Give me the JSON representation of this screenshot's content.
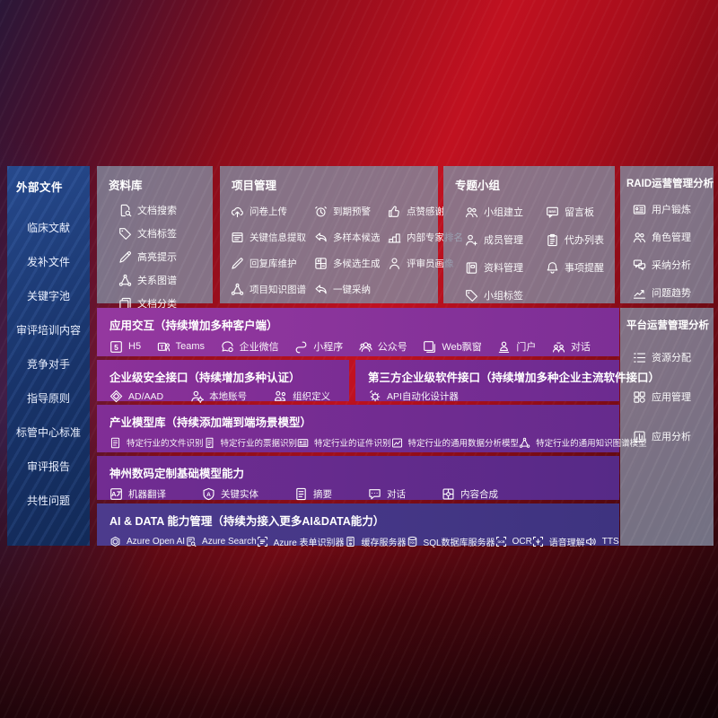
{
  "colors": {
    "background_red": "#c11120",
    "sidebar_blue": "#1b3a70",
    "panel_gray": "rgba(129,137,158,0.82)",
    "band_purple": "#8c3199",
    "band_indigo": "#453a86",
    "text": "#ffffff"
  },
  "sidebar": {
    "title": "外部文件",
    "items": [
      "临床文献",
      "发补文件",
      "关键字池",
      "审评培训内容",
      "竞争对手",
      "指导原则",
      "标管中心标准",
      "审评报告",
      "共性问题"
    ]
  },
  "panels": [
    {
      "title": "资料库",
      "items": [
        {
          "label": "文档搜索",
          "icon": "doc-search-icon"
        },
        {
          "label": "文档标签",
          "icon": "tag-icon"
        },
        {
          "label": "高亮提示",
          "icon": "highlighter-icon"
        },
        {
          "label": "关系图谱",
          "icon": "knowledge-graph-icon"
        },
        {
          "label": "文档分类",
          "icon": "documents-icon"
        }
      ]
    },
    {
      "title": "项目管理",
      "items": [
        {
          "label": "问卷上传",
          "icon": "cloud-upload-icon"
        },
        {
          "label": "到期预警",
          "icon": "alarm-icon"
        },
        {
          "label": "点赞感谢",
          "icon": "thumbs-up-icon"
        },
        {
          "label": "关键信息提取",
          "icon": "doc-extract-icon"
        },
        {
          "label": "多样本候选",
          "icon": "reply-arrow-icon"
        },
        {
          "label": "内部专家排名",
          "icon": "ranking-icon"
        },
        {
          "label": "回复库维护",
          "icon": "pen-icon"
        },
        {
          "label": "多候选生成",
          "icon": "multi-generate-icon"
        },
        {
          "label": "评审员画像",
          "icon": "person-icon"
        },
        {
          "label": "项目知识图谱",
          "icon": "knowledge-graph-icon"
        },
        {
          "label": "一键采纳",
          "icon": "adopt-arrow-icon"
        }
      ]
    },
    {
      "title": "专题小组",
      "items": [
        {
          "label": "小组建立",
          "icon": "people-icon"
        },
        {
          "label": "留言板",
          "icon": "bbs-icon"
        },
        {
          "label": "成员管理",
          "icon": "person-add-icon"
        },
        {
          "label": "代办列表",
          "icon": "clipboard-icon"
        },
        {
          "label": "资料管理",
          "icon": "album-icon"
        },
        {
          "label": "事项提醒",
          "icon": "bell-icon"
        },
        {
          "label": "小组标签",
          "icon": "tag-icon"
        }
      ]
    },
    {
      "title": "RAID运营管理分析",
      "items": [
        {
          "label": "用户锻炼",
          "icon": "id-card-icon"
        },
        {
          "label": "角色管理",
          "icon": "people-icon"
        },
        {
          "label": "采纳分析",
          "icon": "qa-chat-icon"
        },
        {
          "label": "问题趋势",
          "icon": "trend-chart-icon"
        }
      ]
    },
    {
      "title": "平台运营管理分析",
      "items": [
        {
          "label": "资源分配",
          "icon": "list-icon"
        },
        {
          "label": "应用管理",
          "icon": "apps-grid-icon"
        },
        {
          "label": "应用分析",
          "icon": "chart-doc-icon"
        }
      ]
    }
  ],
  "bands": [
    {
      "title": "应用交互（持续增加多种客户端）",
      "items": [
        {
          "label": "H5",
          "icon": "h5-icon"
        },
        {
          "label": "Teams",
          "icon": "teams-icon"
        },
        {
          "label": "企业微信",
          "icon": "wechat-work-icon"
        },
        {
          "label": "小程序",
          "icon": "miniprogram-icon"
        },
        {
          "label": "公众号",
          "icon": "official-account-icon"
        },
        {
          "label": "Web飘窗",
          "icon": "web-window-icon"
        },
        {
          "label": "门户",
          "icon": "portal-icon"
        },
        {
          "label": "对话",
          "icon": "dialog-people-icon"
        }
      ]
    },
    {
      "title": "企业级安全接口（持续增加多种认证）",
      "items": [
        {
          "label": "AD/AAD",
          "icon": "ad-shield-icon"
        },
        {
          "label": "本地账号",
          "icon": "local-account-icon"
        },
        {
          "label": "组织定义",
          "icon": "org-icon"
        }
      ]
    },
    {
      "title": "第三方企业级软件接口（持续增加多种企业主流软件接口）",
      "items": [
        {
          "label": "API自动化设计器",
          "icon": "api-gear-icon"
        }
      ]
    },
    {
      "title": "产业模型库（持续添加端到端场景模型）",
      "items": [
        {
          "label": "特定行业的文件识别",
          "icon": "doc-icon"
        },
        {
          "label": "特定行业的票据识别",
          "icon": "receipt-icon"
        },
        {
          "label": "特定行业的证件识别",
          "icon": "id-card-icon"
        },
        {
          "label": "特定行业的通用数据分析模型",
          "icon": "image-chart-icon"
        },
        {
          "label": "特定行业的通用知识图谱模型",
          "icon": "knowledge-graph-icon"
        }
      ]
    },
    {
      "title": "神州数码定制基础模型能力",
      "items": [
        {
          "label": "机器翻译",
          "icon": "translate-icon"
        },
        {
          "label": "关键实体",
          "icon": "shield-a-icon"
        },
        {
          "label": "摘要",
          "icon": "summary-doc-icon"
        },
        {
          "label": "对话",
          "icon": "chat-icon"
        },
        {
          "label": "内容合成",
          "icon": "puzzle-icon"
        }
      ]
    },
    {
      "title": "AI & DATA 能力管理（持续为接入更多AI&DATA能力）",
      "items": [
        {
          "label": "Azure Open AI",
          "icon": "openai-icon"
        },
        {
          "label": "Azure Search",
          "icon": "azure-search-icon"
        },
        {
          "label": "Azure 表单识别器",
          "icon": "form-recognizer-icon"
        },
        {
          "label": "缓存服务器",
          "icon": "cache-server-icon"
        },
        {
          "label": "SQL数据库服务器",
          "icon": "sql-db-icon"
        },
        {
          "label": "OCR",
          "icon": "ocr-icon"
        },
        {
          "label": "语音理解",
          "icon": "speech-icon"
        },
        {
          "label": "TTS",
          "icon": "tts-icon"
        }
      ]
    }
  ]
}
